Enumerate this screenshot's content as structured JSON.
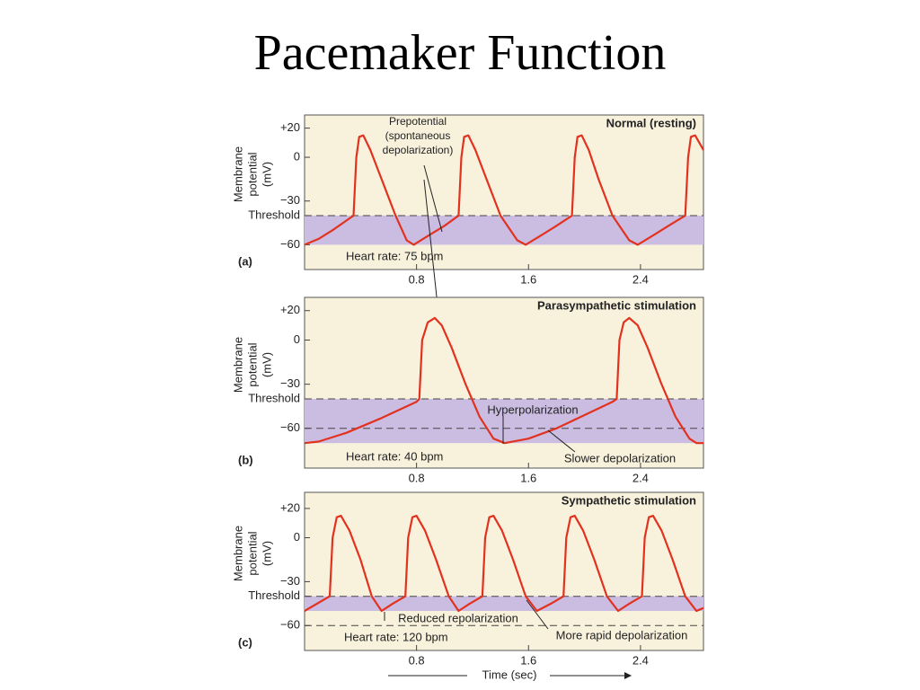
{
  "title": "Pacemaker Function",
  "chart_data": [
    {
      "type": "line",
      "title": "Normal (resting)",
      "panel_label": "(a)",
      "ylabel_lines": [
        "Membrane",
        "potential",
        "(mV)"
      ],
      "annotations": [
        "Heart rate: 75 bpm"
      ],
      "note_lines": [
        "Prepotential",
        "(spontaneous",
        "depolarization)"
      ],
      "color": "#e2321f",
      "shade_color": "#cbbde2",
      "shade_range": [
        -60,
        -40
      ],
      "dashed_lines": [
        -40
      ],
      "xlim": [
        0,
        2.85
      ],
      "ylim": [
        -77,
        29
      ],
      "xticks": [
        0.8,
        1.6,
        2.4
      ],
      "yticks": [
        {
          "value": 20,
          "label": "+20"
        },
        0,
        {
          "value": -30,
          "label": "−30"
        },
        {
          "value": -40,
          "label": "Threshold"
        },
        {
          "value": -60,
          "label": "−60"
        }
      ],
      "x": [
        0,
        0.1,
        0.2,
        0.35,
        0.37,
        0.39,
        0.42,
        0.47,
        0.55,
        0.65,
        0.73,
        0.78,
        0.88,
        1.0,
        1.1,
        1.12,
        1.14,
        1.17,
        1.22,
        1.3,
        1.4,
        1.52,
        1.58,
        1.7,
        1.8,
        1.91,
        1.93,
        1.95,
        1.98,
        2.03,
        2.1,
        2.2,
        2.32,
        2.38,
        2.5,
        2.6,
        2.72,
        2.74,
        2.76,
        2.79,
        2.85
      ],
      "values": [
        -60,
        -56,
        -50,
        -40,
        0,
        14,
        15,
        5,
        -15,
        -40,
        -57,
        -60,
        -54,
        -47,
        -40,
        0,
        14,
        15,
        5,
        -15,
        -40,
        -57,
        -60,
        -53,
        -47,
        -40,
        0,
        14,
        15,
        5,
        -15,
        -40,
        -57,
        -60,
        -53,
        -47,
        -40,
        0,
        14,
        15,
        5
      ]
    },
    {
      "type": "line",
      "title": "Parasympathetic stimulation",
      "panel_label": "(b)",
      "ylabel_lines": [
        "Membrane",
        "potential",
        "(mV)"
      ],
      "annotations": [
        "Heart rate: 40 bpm",
        "Hyperpolarization",
        "Slower depolarization"
      ],
      "color": "#e2321f",
      "shade_color": "#cbbde2",
      "shade_range": [
        -70,
        -40
      ],
      "dashed_lines": [
        -40,
        -60
      ],
      "xlim": [
        0,
        2.85
      ],
      "ylim": [
        -87,
        29
      ],
      "xticks": [
        0.8,
        1.6,
        2.4
      ],
      "yticks": [
        {
          "value": 20,
          "label": "+20"
        },
        0,
        {
          "value": -30,
          "label": "−30"
        },
        {
          "value": -40,
          "label": "Threshold"
        },
        {
          "value": -60,
          "label": "−60"
        }
      ],
      "x": [
        0,
        0.1,
        0.3,
        0.55,
        0.8,
        0.82,
        0.84,
        0.88,
        0.93,
        0.98,
        1.05,
        1.15,
        1.25,
        1.35,
        1.43,
        1.6,
        1.8,
        2.0,
        2.2,
        2.23,
        2.25,
        2.28,
        2.32,
        2.38,
        2.45,
        2.55,
        2.65,
        2.75,
        2.8,
        2.85
      ],
      "values": [
        -70,
        -69,
        -63,
        -53,
        -42,
        -40,
        0,
        12,
        15,
        10,
        -5,
        -30,
        -52,
        -67,
        -70,
        -67,
        -60,
        -51,
        -42,
        -40,
        0,
        12,
        15,
        10,
        -5,
        -30,
        -52,
        -67,
        -70,
        -70
      ]
    },
    {
      "type": "line",
      "title": "Sympathetic stimulation",
      "panel_label": "(c)",
      "ylabel_lines": [
        "Membrane",
        "potential",
        "(mV)"
      ],
      "annotations": [
        "Heart rate: 120 bpm",
        "Reduced repolarization",
        "More rapid depolarization"
      ],
      "xlabel": "Time (sec)",
      "color": "#e2321f",
      "shade_color": "#cbbde2",
      "shade_range": [
        -50,
        -40
      ],
      "dashed_lines": [
        -40,
        -60
      ],
      "xlim": [
        0,
        2.85
      ],
      "ylim": [
        -77,
        31
      ],
      "xticks": [
        0.8,
        1.6,
        2.4
      ],
      "yticks": [
        {
          "value": 20,
          "label": "+20"
        },
        0,
        {
          "value": -30,
          "label": "−30"
        },
        {
          "value": -40,
          "label": "Threshold"
        },
        {
          "value": -60,
          "label": "−60"
        }
      ],
      "x": [
        0,
        0.18,
        0.2,
        0.23,
        0.26,
        0.32,
        0.4,
        0.48,
        0.55,
        0.63,
        0.72,
        0.74,
        0.77,
        0.8,
        0.86,
        0.94,
        1.03,
        1.1,
        1.18,
        1.27,
        1.29,
        1.32,
        1.35,
        1.41,
        1.49,
        1.58,
        1.66,
        1.76,
        1.85,
        1.87,
        1.9,
        1.93,
        1.99,
        2.07,
        2.16,
        2.24,
        2.32,
        2.41,
        2.43,
        2.46,
        2.49,
        2.55,
        2.63,
        2.72,
        2.8,
        2.85
      ],
      "values": [
        -50,
        -40,
        0,
        14,
        15,
        5,
        -15,
        -40,
        -50,
        -45,
        -40,
        0,
        14,
        15,
        5,
        -15,
        -40,
        -50,
        -45,
        -40,
        0,
        14,
        15,
        5,
        -15,
        -40,
        -50,
        -45,
        -40,
        0,
        14,
        15,
        5,
        -15,
        -40,
        -50,
        -45,
        -40,
        0,
        14,
        15,
        5,
        -15,
        -40,
        -50,
        -48
      ]
    }
  ]
}
